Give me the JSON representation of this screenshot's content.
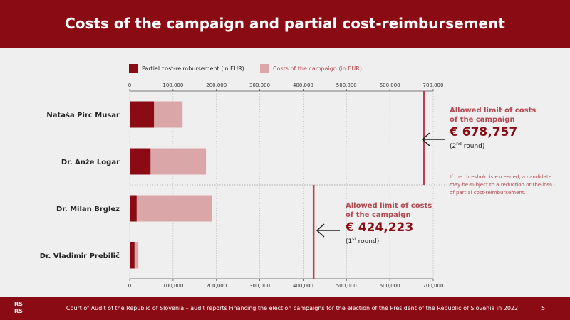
{
  "header": {
    "title": "Costs of the campaign and partial cost-reimbursement"
  },
  "footer": {
    "logo": "RS RS",
    "text": "Court of Audit of the Republic of Slovenia – audit reports Financing the election campaigns for the election of the President of the Republic of Slovenia in 2022",
    "page": "5"
  },
  "legend": {
    "reimbursement": "Partial cost-reimbursement (in EUR)",
    "costs": "Costs of the campaign (in EUR)"
  },
  "colors": {
    "brand": "#8b0b14",
    "reimbursement": "#8b0b14",
    "costs": "#dba6a8",
    "limit_line": "#c0404a"
  },
  "limits": [
    {
      "heading_line1": "Allowed limit of costs",
      "heading_line2": "of the campaign",
      "amount": "€ 678,757",
      "round_num": "2",
      "round_sup": "nd",
      "round_word": " round",
      "value": 678757
    },
    {
      "heading_line1": "Allowed limit of costs",
      "heading_line2": "of the campaign",
      "amount": "€ 424,223",
      "round_num": "1",
      "round_sup": "st",
      "round_word": " round",
      "value": 424223
    }
  ],
  "note": "If the threshold is exceeded, a candidate may be subject to a reduction or the loss of partial cost-reimbursement.",
  "chart_data": {
    "type": "bar",
    "orientation": "horizontal",
    "stacked": true,
    "categories": [
      "Nataša Pirc Musar",
      "Dr. Anže Logar",
      "Dr. Milan Brglez",
      "Dr. Vladimir Prebilič"
    ],
    "series": [
      {
        "name": "Partial cost-reimbursement (in EUR)",
        "values": [
          56000,
          48000,
          16000,
          11000
        ]
      },
      {
        "name": "Costs of the campaign (in EUR)",
        "values": [
          122000,
          176000,
          189000,
          20000
        ]
      }
    ],
    "xlim": [
      0,
      700000
    ],
    "xticks": [
      0,
      100000,
      200000,
      300000,
      400000,
      500000,
      600000,
      700000
    ],
    "xtick_labels": [
      "0",
      "100,000",
      "200,000",
      "300,000",
      "400,000",
      "500,000",
      "600,000",
      "700,000"
    ],
    "grid": true,
    "legend_position": "top",
    "reference_lines": [
      {
        "value": 678757,
        "applies_to": "2nd round",
        "categories": [
          "Nataša Pirc Musar",
          "Dr. Anže Logar"
        ]
      },
      {
        "value": 424223,
        "applies_to": "1st round",
        "categories": [
          "Dr. Milan Brglez",
          "Dr. Vladimir Prebilič"
        ]
      }
    ]
  }
}
